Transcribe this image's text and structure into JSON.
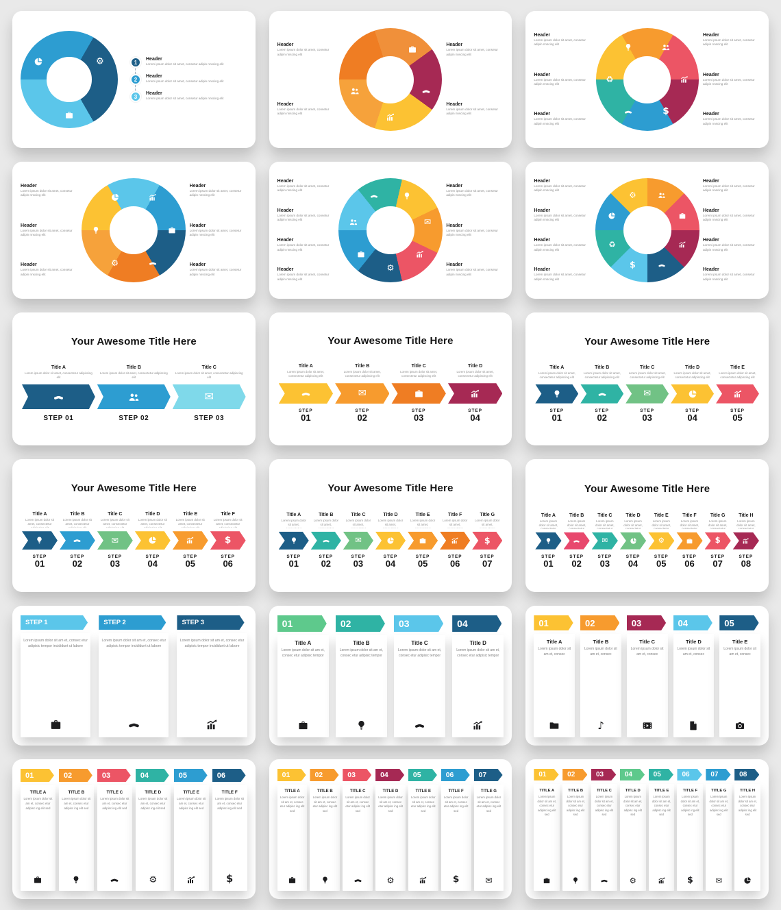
{
  "page": {
    "background": "#e9e9e9",
    "card_color": "#ffffff"
  },
  "lorem": {
    "header_small": "Lorem ipsum dolor sit amet, consetur adipin nnscing elit",
    "arrow_col": "Lorem ipsum dolor sit amet, consectetur adipiscing elit",
    "ribbon_long": "Lorem ipsum dolor sit am et, consec etur adipisic tempor incididunt ut labore",
    "ribbon_med": "Lorem ipsum dolor sit am et, consec etur adipisic tempor",
    "ribbon_short": "Lorem ipsum dolor sit am et, consec",
    "ribbon_r6": "Lorem ipsum dolor sit am et, consec etur adipisc ing elit sed"
  },
  "labels": {
    "header": "Header",
    "awesome_title": "Your Awesome Title Here"
  },
  "slides": [
    {
      "type": "donut-list",
      "from": -210,
      "size": 142,
      "segments": [
        {
          "c": "#5bc6ea",
          "icon": "pie"
        },
        {
          "c": "#2d9dd1",
          "icon": "gear"
        },
        {
          "c": "#1d5e87",
          "icon": "briefcase"
        }
      ],
      "list": [
        {
          "num": "1",
          "c": "#1d5e87",
          "title": "Header"
        },
        {
          "num": "2",
          "c": "#2d9dd1",
          "title": "Header"
        },
        {
          "num": "3",
          "c": "#5bc6ea",
          "title": "Header"
        }
      ]
    },
    {
      "type": "donut",
      "from": -90,
      "size": 150,
      "segments": [
        {
          "c": "#ef7d23",
          "icon": "briefcase"
        },
        {
          "c": "#f0903a",
          "icon": "handshake"
        },
        {
          "c": "#a62954",
          "icon": "chart"
        },
        {
          "c": "#fcc233",
          "icon": "people"
        },
        {
          "c": "#f6a23b",
          "icon": null
        }
      ],
      "left": [
        "Header",
        "Header"
      ],
      "right": [
        "Header",
        "Header"
      ]
    },
    {
      "type": "donut",
      "from": -90,
      "size": 150,
      "segments": [
        {
          "c": "#fcc233",
          "icon": "people"
        },
        {
          "c": "#f79b2e",
          "icon": "chart"
        },
        {
          "c": "#ec5565",
          "icon": "dollar"
        },
        {
          "c": "#a62954",
          "icon": "handshake"
        },
        {
          "c": "#2d9dd1",
          "icon": "recycle"
        },
        {
          "c": "#2fb3a4",
          "icon": "lightbulb"
        }
      ],
      "left": [
        "Header",
        "Header",
        "Header"
      ],
      "right": [
        "Header",
        "Header",
        "Header"
      ]
    },
    {
      "type": "donut",
      "from": -90,
      "size": 152,
      "segments": [
        {
          "c": "#fcc233",
          "icon": "chart"
        },
        {
          "c": "#5bc6ea",
          "icon": "briefcase"
        },
        {
          "c": "#2d9dd1",
          "icon": "handshake"
        },
        {
          "c": "#1d5e87",
          "icon": "gear"
        },
        {
          "c": "#ef7d23",
          "icon": "lightbulb"
        },
        {
          "c": "#f6a23b",
          "icon": "pie"
        }
      ],
      "left": [
        "Header",
        "Header",
        "Header"
      ],
      "right": [
        "Header",
        "Header",
        "Header"
      ]
    },
    {
      "type": "donut",
      "from": -90,
      "size": 152,
      "segments": [
        {
          "c": "#5bc6ea",
          "icon": "lightbulb"
        },
        {
          "c": "#2fb3a4",
          "icon": "envelope"
        },
        {
          "c": "#fcc233",
          "icon": "chart"
        },
        {
          "c": "#f79b2e",
          "icon": "gear"
        },
        {
          "c": "#ec5565",
          "icon": "briefcase"
        },
        {
          "c": "#1d5e87",
          "icon": "people"
        },
        {
          "c": "#2d9dd1",
          "icon": "handshake"
        }
      ],
      "left": [
        "Header",
        "Header",
        "Header",
        "Header"
      ],
      "right": [
        "Header",
        "Header",
        "Header"
      ]
    },
    {
      "type": "donut",
      "from": -90,
      "size": 152,
      "segments": [
        {
          "c": "#2d9dd1",
          "icon": "people"
        },
        {
          "c": "#fcc233",
          "icon": "briefcase"
        },
        {
          "c": "#f79b2e",
          "icon": "chart"
        },
        {
          "c": "#ec5565",
          "icon": "handshake"
        },
        {
          "c": "#a62954",
          "icon": "dollar"
        },
        {
          "c": "#1d5e87",
          "icon": "recycle"
        },
        {
          "c": "#5bc6ea",
          "icon": "pie"
        },
        {
          "c": "#2fb3a4",
          "icon": "gear"
        }
      ],
      "left": [
        "Header",
        "Header",
        "Header",
        "Header"
      ],
      "right": [
        "Header",
        "Header",
        "Header",
        "Header"
      ]
    },
    {
      "type": "arrows",
      "title": "Your Awesome Title Here",
      "single_steps": true,
      "arrow_h": 36,
      "icon_size": 17,
      "items": [
        {
          "title": "Title A",
          "c": "#1d5e87",
          "icon": "handshake",
          "step": "STEP 01"
        },
        {
          "title": "Title B",
          "c": "#2d9dd1",
          "icon": "people",
          "step": "STEP 02"
        },
        {
          "title": "Title C",
          "c": "#7fd9ea",
          "icon": "envelope",
          "step": "STEP 03"
        }
      ]
    },
    {
      "type": "arrows",
      "title": "Your Awesome Title Here",
      "single_steps": false,
      "arrow_h": 30,
      "icon_size": 15,
      "items": [
        {
          "title": "Title A",
          "c": "#fcc233",
          "icon": "handshake",
          "step_word": "STEP",
          "step_num": "01"
        },
        {
          "title": "Title B",
          "c": "#f79b2e",
          "icon": "envelope",
          "step_word": "STEP",
          "step_num": "02"
        },
        {
          "title": "Title C",
          "c": "#ef7d23",
          "icon": "briefcase",
          "step_word": "STEP",
          "step_num": "03"
        },
        {
          "title": "Title D",
          "c": "#a62954",
          "icon": "chart",
          "step_word": "STEP",
          "step_num": "04"
        }
      ]
    },
    {
      "type": "arrows",
      "title": "Your Awesome Title Here",
      "single_steps": false,
      "arrow_h": 28,
      "icon_size": 14,
      "items": [
        {
          "title": "Title A",
          "c": "#1d5e87",
          "icon": "lightbulb",
          "step_word": "STEP",
          "step_num": "01"
        },
        {
          "title": "Title B",
          "c": "#2fb3a4",
          "icon": "handshake",
          "step_word": "STEP",
          "step_num": "02"
        },
        {
          "title": "Title C",
          "c": "#71c285",
          "icon": "envelope",
          "step_word": "STEP",
          "step_num": "03"
        },
        {
          "title": "Title D",
          "c": "#fcc233",
          "icon": "pie",
          "step_word": "STEP",
          "step_num": "04"
        },
        {
          "title": "Title E",
          "c": "#ec5565",
          "icon": "chart",
          "step_word": "STEP",
          "step_num": "05"
        }
      ]
    },
    {
      "type": "arrows",
      "title": "Your Awesome Title Here",
      "single_steps": false,
      "arrow_h": 27,
      "icon_size": 13,
      "items": [
        {
          "title": "Title A",
          "c": "#1d5e87",
          "icon": "lightbulb",
          "step_word": "STEP",
          "step_num": "01"
        },
        {
          "title": "Title B",
          "c": "#2d9dd1",
          "icon": "handshake",
          "step_word": "STEP",
          "step_num": "02"
        },
        {
          "title": "Title C",
          "c": "#71c285",
          "icon": "envelope",
          "step_word": "STEP",
          "step_num": "03"
        },
        {
          "title": "Title D",
          "c": "#fcc233",
          "icon": "pie",
          "step_word": "STEP",
          "step_num": "04"
        },
        {
          "title": "Title E",
          "c": "#f79b2e",
          "icon": "chart",
          "step_word": "STEP",
          "step_num": "05"
        },
        {
          "title": "Title F",
          "c": "#ec5565",
          "icon": "dollar",
          "step_word": "STEP",
          "step_num": "06"
        }
      ]
    },
    {
      "type": "arrows",
      "title": "Your Awesome Title Here",
      "single_steps": false,
      "arrow_h": 26,
      "icon_size": 12,
      "items": [
        {
          "title": "Title A",
          "c": "#1d5e87",
          "icon": "lightbulb",
          "step_word": "STEP",
          "step_num": "01"
        },
        {
          "title": "Title B",
          "c": "#2fb3a4",
          "icon": "handshake",
          "step_word": "STEP",
          "step_num": "02"
        },
        {
          "title": "Title C",
          "c": "#71c285",
          "icon": "envelope",
          "step_word": "STEP",
          "step_num": "03"
        },
        {
          "title": "Title D",
          "c": "#fcc233",
          "icon": "pie",
          "step_word": "STEP",
          "step_num": "04"
        },
        {
          "title": "Title E",
          "c": "#f79b2e",
          "icon": "briefcase",
          "step_word": "STEP",
          "step_num": "05"
        },
        {
          "title": "Title F",
          "c": "#ef7d23",
          "icon": "chart",
          "step_word": "STEP",
          "step_num": "06"
        },
        {
          "title": "Title G",
          "c": "#ec5565",
          "icon": "dollar",
          "step_word": "STEP",
          "step_num": "07"
        }
      ]
    },
    {
      "type": "arrows",
      "title": "Your Awesome Title Here",
      "single_steps": false,
      "arrow_h": 25,
      "icon_size": 11,
      "items": [
        {
          "title": "Title A",
          "c": "#1d5e87",
          "icon": "lightbulb",
          "step_word": "STEP",
          "step_num": "01"
        },
        {
          "title": "Title B",
          "c": "#e8486d",
          "icon": "handshake",
          "step_word": "STEP",
          "step_num": "02"
        },
        {
          "title": "Title C",
          "c": "#2fb3a4",
          "icon": "envelope",
          "step_word": "STEP",
          "step_num": "03"
        },
        {
          "title": "Title D",
          "c": "#71c285",
          "icon": "pie",
          "step_word": "STEP",
          "step_num": "04"
        },
        {
          "title": "Title E",
          "c": "#fcc233",
          "icon": "gear",
          "step_word": "STEP",
          "step_num": "05"
        },
        {
          "title": "Title F",
          "c": "#f79b2e",
          "icon": "briefcase",
          "step_word": "STEP",
          "step_num": "06"
        },
        {
          "title": "Title G",
          "c": "#ec5565",
          "icon": "dollar",
          "step_word": "STEP",
          "step_num": "07"
        },
        {
          "title": "Title H",
          "c": "#a62954",
          "icon": "chart",
          "step_word": "STEP",
          "step_num": "08"
        }
      ]
    },
    {
      "type": "ribbons",
      "variant": "steps",
      "body": "ribbon_long",
      "tab_h": 21,
      "tab_fs": 9.5,
      "text_fs": 5.2,
      "icon_size": 19,
      "gap": 12,
      "items": [
        {
          "tab": "STEP 1",
          "c": "#5bc6ea",
          "icon": "briefcase"
        },
        {
          "tab": "STEP 2",
          "c": "#2d9dd1",
          "icon": "handshake"
        },
        {
          "tab": "STEP 3",
          "c": "#1d5e87",
          "icon": "chart"
        }
      ]
    },
    {
      "type": "ribbons",
      "variant": "numtitle",
      "body": "ribbon_med",
      "tab_h": 24,
      "tab_fs": 14,
      "title_fs": 8,
      "text_fs": 5,
      "icon_size": 17,
      "gap": 10,
      "items": [
        {
          "num": "01",
          "c": "#5ec98c",
          "title": "Title A",
          "icon": "briefcase"
        },
        {
          "num": "02",
          "c": "#2fb3a4",
          "title": "Title B",
          "icon": "lightbulb"
        },
        {
          "num": "03",
          "c": "#5bc6ea",
          "title": "Title C",
          "icon": "handshake"
        },
        {
          "num": "04",
          "c": "#1d5e87",
          "title": "Title D",
          "icon": "chart"
        }
      ]
    },
    {
      "type": "ribbons",
      "variant": "numtitle",
      "body": "ribbon_short",
      "tab_h": 22,
      "tab_fs": 13,
      "title_fs": 7.5,
      "text_fs": 5,
      "icon_size": 16,
      "gap": 8,
      "items": [
        {
          "num": "01",
          "c": "#fcc233",
          "title": "Title A",
          "icon": "folder"
        },
        {
          "num": "02",
          "c": "#f79b2e",
          "title": "Title B",
          "icon": "music"
        },
        {
          "num": "03",
          "c": "#a62954",
          "title": "Title C",
          "icon": "film"
        },
        {
          "num": "04",
          "c": "#5bc6ea",
          "title": "Title D",
          "icon": "file"
        },
        {
          "num": "05",
          "c": "#1d5e87",
          "title": "Title E",
          "icon": "camera"
        }
      ]
    },
    {
      "type": "ribbons",
      "variant": "numtitle",
      "body": "ribbon_r6",
      "tab_h": 19,
      "tab_fs": 11,
      "title_fs": 6.3,
      "text_fs": 4.4,
      "icon_size": 14,
      "gap": 5,
      "items": [
        {
          "num": "01",
          "c": "#fcc233",
          "title": "TITLE A",
          "icon": "briefcase"
        },
        {
          "num": "02",
          "c": "#f79b2e",
          "title": "TITLE B",
          "icon": "lightbulb"
        },
        {
          "num": "03",
          "c": "#ec5565",
          "title": "TITLE C",
          "icon": "handshake"
        },
        {
          "num": "04",
          "c": "#2fb3a4",
          "title": "TITLE D",
          "icon": "gear"
        },
        {
          "num": "05",
          "c": "#2d9dd1",
          "title": "TITLE E",
          "icon": "chart"
        },
        {
          "num": "06",
          "c": "#1d5e87",
          "title": "TITLE F",
          "icon": "dollar"
        }
      ]
    },
    {
      "type": "ribbons",
      "variant": "numtitle",
      "body": "ribbon_r6",
      "tab_h": 18,
      "tab_fs": 10.5,
      "title_fs": 6,
      "text_fs": 4.3,
      "icon_size": 13,
      "gap": 4,
      "items": [
        {
          "num": "01",
          "c": "#fcc233",
          "title": "TITLE A",
          "icon": "briefcase"
        },
        {
          "num": "02",
          "c": "#f79b2e",
          "title": "TITLE B",
          "icon": "lightbulb"
        },
        {
          "num": "03",
          "c": "#ec5565",
          "title": "TITLE C",
          "icon": "handshake"
        },
        {
          "num": "04",
          "c": "#a62954",
          "title": "TITLE D",
          "icon": "gear"
        },
        {
          "num": "05",
          "c": "#2fb3a4",
          "title": "TITLE E",
          "icon": "chart"
        },
        {
          "num": "06",
          "c": "#2d9dd1",
          "title": "TITLE F",
          "icon": "dollar"
        },
        {
          "num": "07",
          "c": "#1d5e87",
          "title": "TITLE G",
          "icon": "envelope"
        }
      ]
    },
    {
      "type": "ribbons",
      "variant": "numtitle",
      "body": "ribbon_r6",
      "tab_h": 17,
      "tab_fs": 10,
      "title_fs": 5.8,
      "text_fs": 4.2,
      "icon_size": 12,
      "gap": 4,
      "items": [
        {
          "num": "01",
          "c": "#fcc233",
          "title": "TITLE A",
          "icon": "briefcase"
        },
        {
          "num": "02",
          "c": "#f79b2e",
          "title": "TITLE B",
          "icon": "lightbulb"
        },
        {
          "num": "03",
          "c": "#a62954",
          "title": "TITLE C",
          "icon": "handshake"
        },
        {
          "num": "04",
          "c": "#5ec98c",
          "title": "TITLE D",
          "icon": "gear"
        },
        {
          "num": "05",
          "c": "#2fb3a4",
          "title": "TITLE E",
          "icon": "chart"
        },
        {
          "num": "06",
          "c": "#5bc6ea",
          "title": "TITLE F",
          "icon": "dollar"
        },
        {
          "num": "07",
          "c": "#2d9dd1",
          "title": "TITLE G",
          "icon": "envelope"
        },
        {
          "num": "08",
          "c": "#1d5e87",
          "title": "TITLE H",
          "icon": "pie"
        }
      ]
    }
  ]
}
